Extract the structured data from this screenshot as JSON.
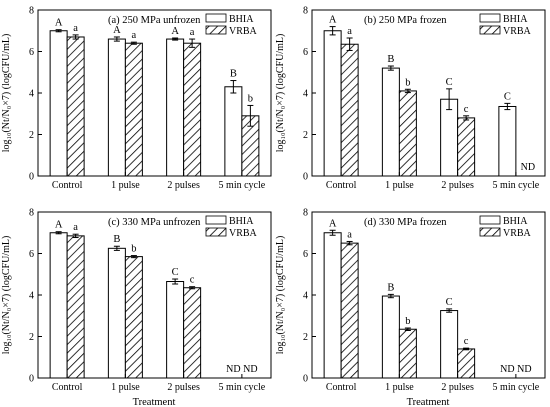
{
  "chart_data": [
    {
      "type": "bar",
      "panel_title": "(a) 250 MPa  unfrozen",
      "categories": [
        "Control",
        "1 pulse",
        "2 pulses",
        "5 min cycle"
      ],
      "xlabel": "",
      "ylabel": "log₁₀(Nt/N₀×7) (logCFU/mL)",
      "ylim": [
        0,
        8
      ],
      "yticks": [
        "0",
        "2",
        "4",
        "6",
        "8"
      ],
      "legend": "top-right",
      "series": [
        {
          "name": "BHIA",
          "values": [
            7.0,
            6.6,
            6.6,
            4.3
          ],
          "errors": [
            0.05,
            0.1,
            0.05,
            0.3
          ],
          "letters": [
            "A",
            "A",
            "A",
            "B"
          ]
        },
        {
          "name": "VRBA",
          "values": [
            6.7,
            6.4,
            6.4,
            2.9
          ],
          "errors": [
            0.1,
            0.05,
            0.2,
            0.5
          ],
          "letters": [
            "a",
            "a",
            "a",
            "b"
          ]
        }
      ],
      "nd_labels": []
    },
    {
      "type": "bar",
      "panel_title": "(b) 250 MPa  frozen",
      "categories": [
        "Control",
        "1 pulse",
        "2 pulses",
        "5 min cycle"
      ],
      "xlabel": "",
      "ylabel": "log₁₀(Nt/N₀×7) (logCFU/mL)",
      "ylim": [
        0,
        8
      ],
      "yticks": [
        "0",
        "2",
        "4",
        "6",
        "8"
      ],
      "legend": "top-right",
      "series": [
        {
          "name": "BHIA",
          "values": [
            7.0,
            5.2,
            3.7,
            3.35
          ],
          "errors": [
            0.2,
            0.1,
            0.5,
            0.15
          ],
          "letters": [
            "A",
            "B",
            "C",
            "C"
          ]
        },
        {
          "name": "VRBA",
          "values": [
            6.35,
            4.1,
            2.8,
            null
          ],
          "errors": [
            0.3,
            0.08,
            0.1,
            null
          ],
          "letters": [
            "a",
            "b",
            "c",
            ""
          ]
        }
      ],
      "nd_labels": [
        "",
        "",
        "",
        "ND"
      ]
    },
    {
      "type": "bar",
      "panel_title": "(c) 330 MPa  unfrozen",
      "categories": [
        "Control",
        "1 pulse",
        "2 pulses",
        "5 min cycle"
      ],
      "xlabel": "Treatment",
      "ylabel": "log₁₀(Nt/N₀×7) (logCFU/mL)",
      "ylim": [
        0,
        8
      ],
      "yticks": [
        "0",
        "2",
        "4",
        "6",
        "8"
      ],
      "legend": "top-right",
      "series": [
        {
          "name": "BHIA",
          "values": [
            7.0,
            6.25,
            4.65,
            null
          ],
          "errors": [
            0.05,
            0.1,
            0.12,
            null
          ],
          "letters": [
            "A",
            "B",
            "C",
            ""
          ]
        },
        {
          "name": "VRBA",
          "values": [
            6.85,
            5.85,
            4.35,
            null
          ],
          "errors": [
            0.08,
            0.05,
            0.05,
            null
          ],
          "letters": [
            "a",
            "b",
            "c",
            ""
          ]
        }
      ],
      "nd_labels": [
        "",
        "",
        "",
        "ND ND"
      ]
    },
    {
      "type": "bar",
      "panel_title": "(d) 330 MPa  frozen",
      "categories": [
        "Control",
        "1 pulse",
        "2 pulses",
        "5 min cycle"
      ],
      "xlabel": "Treatment",
      "ylabel": "log₁₀(Nt/N₀×7) (logCFU/mL)",
      "ylim": [
        0,
        8
      ],
      "yticks": [
        "0",
        "2",
        "4",
        "6",
        "8"
      ],
      "legend": "top-right",
      "series": [
        {
          "name": "BHIA",
          "values": [
            7.0,
            3.95,
            3.25,
            null
          ],
          "errors": [
            0.12,
            0.08,
            0.08,
            null
          ],
          "letters": [
            "A",
            "B",
            "C",
            ""
          ]
        },
        {
          "name": "VRBA",
          "values": [
            6.5,
            2.35,
            1.4,
            null
          ],
          "errors": [
            0.08,
            0.06,
            0.04,
            null
          ],
          "letters": [
            "a",
            "b",
            "c",
            ""
          ]
        }
      ],
      "nd_labels": [
        "",
        "",
        "",
        "ND ND"
      ]
    }
  ]
}
